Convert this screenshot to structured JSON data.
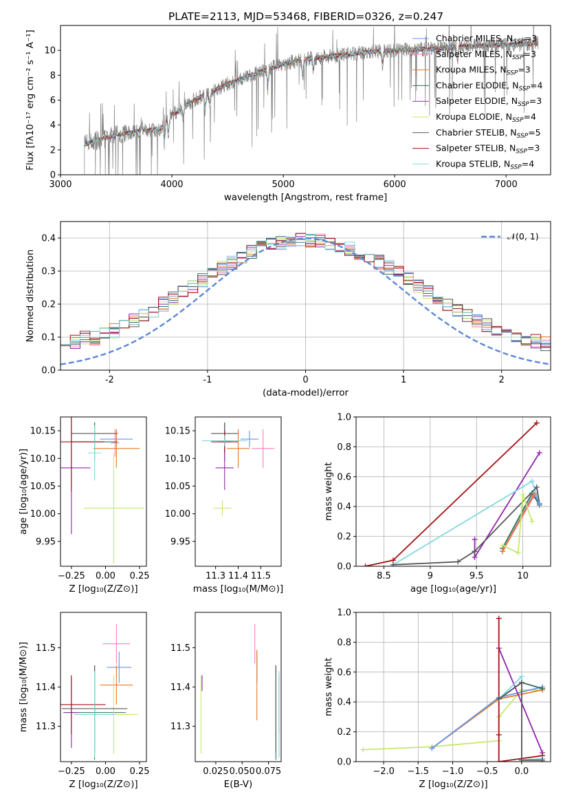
{
  "figure": {
    "title": "PLATE=2113, MJD=53468, FIBERID=0326, z=0.247"
  },
  "palette": {
    "Chabrier MILES": "#6495ed",
    "Salpeter MILES": "#ff7ab8",
    "Kroupa MILES": "#e87722",
    "Chabrier ELODIE": "#2e6b5e",
    "Salpeter ELODIE": "#8e24aa",
    "Kroupa ELODIE": "#c6e86b",
    "Chabrier STELIB": "#555555",
    "Salpeter STELIB": "#a50f15",
    "Kroupa STELIB": "#80d8e0",
    "normal": "#5b86d6",
    "observed": "#808080"
  },
  "chart_data": [
    {
      "id": "spectrum",
      "type": "line",
      "title": "PLATE=2113, MJD=53468, FIBERID=0326, z=0.247",
      "xlabel": "wavelength [Angstrom, rest frame]",
      "ylabel": "Flux [fλ10⁻¹⁷ erg cm⁻² s⁻¹ A⁻¹]",
      "xlim": [
        3000,
        7400
      ],
      "ylim": [
        0,
        12
      ],
      "xticks": [
        3000,
        4000,
        5000,
        6000,
        7000
      ],
      "yticks": [
        0,
        2,
        4,
        6,
        8,
        10
      ],
      "grid": false,
      "legend_position": "top-right",
      "continuum": {
        "x": [
          3210,
          3300,
          3500,
          3700,
          3900,
          3960,
          4000,
          4200,
          4500,
          4800,
          5000,
          5200,
          5500,
          5800,
          6000,
          6300,
          6600,
          6900,
          7200,
          7300
        ],
        "y": [
          2.4,
          2.7,
          3.2,
          3.5,
          3.7,
          4.6,
          4.8,
          6.0,
          7.3,
          8.3,
          8.9,
          9.3,
          9.6,
          9.9,
          10.0,
          10.1,
          10.3,
          10.4,
          10.5,
          10.6
        ]
      },
      "series": [
        {
          "name": "Chabrier MILES, N_SSP=3"
        },
        {
          "name": "Salpeter MILES, N_SSP=3"
        },
        {
          "name": "Kroupa MILES, N_SSP=3"
        },
        {
          "name": "Chabrier ELODIE, N_SSP=4"
        },
        {
          "name": "Salpeter ELODIE, N_SSP=3"
        },
        {
          "name": "Kroupa ELODIE, N_SSP=4"
        },
        {
          "name": "Chabrier STELIB, N_SSP=5"
        },
        {
          "name": "Salpeter STELIB, N_SSP=3"
        },
        {
          "name": "Kroupa STELIB, N_SSP=4"
        }
      ]
    },
    {
      "id": "residuals",
      "type": "line",
      "xlabel": "(data-model)/error",
      "ylabel": "Normed distribution",
      "xlim": [
        -2.5,
        2.5
      ],
      "ylim": [
        0,
        0.45
      ],
      "xticks": [
        -2,
        -1,
        0,
        1,
        2
      ],
      "yticks": [
        0.0,
        0.1,
        0.2,
        0.3,
        0.4
      ],
      "grid": true,
      "legend_position": "top-right",
      "normal_label": "𝒩(0, 1)",
      "bin_width": 0.1,
      "histogram_series": 9
    },
    {
      "id": "age_vs_Z",
      "type": "scatter",
      "xlabel": "Z [log₁₀(Z/Z⊙)]",
      "ylabel": "age  [log₁₀(age/yr)]",
      "xlim": [
        -0.33,
        0.3
      ],
      "ylim": [
        9.905,
        10.175
      ],
      "xticks": [
        -0.25,
        0.0,
        0.25
      ],
      "xticklabels": [
        "−0.25",
        "0.00",
        "0.25"
      ],
      "yticks": [
        9.95,
        10.0,
        10.05,
        10.1,
        10.15
      ],
      "grid": false,
      "points": [
        {
          "model": "Chabrier MILES",
          "x": 0.08,
          "y": 10.135,
          "xerr": 0.12,
          "yerr": 0.015
        },
        {
          "model": "Salpeter MILES",
          "x": 0.07,
          "y": 10.128,
          "xerr": 0.03,
          "yerr": 0.025
        },
        {
          "model": "Kroupa MILES",
          "x": 0.08,
          "y": 10.118,
          "xerr": 0.17,
          "yerr": 0.035
        },
        {
          "model": "Chabrier ELODIE",
          "x": -0.08,
          "y": 10.13,
          "xerr": 0.17,
          "yerr": 0.035
        },
        {
          "model": "Salpeter ELODIE",
          "x": -0.25,
          "y": 10.083,
          "xerr": 0.14,
          "yerr": 0.12
        },
        {
          "model": "Kroupa ELODIE",
          "x": 0.06,
          "y": 10.01,
          "xerr": 0.22,
          "yerr": 0.1
        },
        {
          "model": "Chabrier STELIB",
          "x": -0.08,
          "y": 10.145,
          "xerr": 0.17,
          "yerr": 0.02
        },
        {
          "model": "Salpeter STELIB",
          "x": -0.25,
          "y": 10.13,
          "xerr": 0.24,
          "yerr": 0.09
        },
        {
          "model": "Kroupa STELIB",
          "x": -0.08,
          "y": 10.11,
          "xerr": 0.05,
          "yerr": 0.05
        }
      ]
    },
    {
      "id": "age_vs_mass",
      "type": "scatter",
      "xlabel": "mass [log₁₀(M/M⊙)]",
      "xlim": [
        11.21,
        11.59
      ],
      "ylim": [
        9.905,
        10.175
      ],
      "xticks": [
        11.3,
        11.4,
        11.5
      ],
      "yticks": [
        9.95,
        10.0,
        10.05,
        10.1,
        10.15
      ],
      "grid": false,
      "points": [
        {
          "model": "Chabrier MILES",
          "x": 11.45,
          "y": 10.135,
          "xerr": 0.04,
          "yerr": 0.015
        },
        {
          "model": "Salpeter MILES",
          "x": 11.51,
          "y": 10.118,
          "xerr": 0.05,
          "yerr": 0.035
        },
        {
          "model": "Kroupa MILES",
          "x": 11.4,
          "y": 10.118,
          "xerr": 0.05,
          "yerr": 0.035
        },
        {
          "model": "Chabrier ELODIE",
          "x": 11.34,
          "y": 10.13,
          "xerr": 0.03,
          "yerr": 0.035
        },
        {
          "model": "Salpeter ELODIE",
          "x": 11.34,
          "y": 10.083,
          "xerr": 0.04,
          "yerr": 0.04
        },
        {
          "model": "Kroupa ELODIE",
          "x": 11.33,
          "y": 10.01,
          "xerr": 0.04,
          "yerr": 0.015
        },
        {
          "model": "Chabrier STELIB",
          "x": 11.34,
          "y": 10.145,
          "xerr": 0.06,
          "yerr": 0.02
        },
        {
          "model": "Salpeter STELIB",
          "x": 11.34,
          "y": 10.13,
          "xerr": 0.06,
          "yerr": 0.02
        },
        {
          "model": "Kroupa STELIB",
          "x": 11.34,
          "y": 10.132,
          "xerr": 0.1,
          "yerr": 0.01
        }
      ]
    },
    {
      "id": "weight_vs_age",
      "type": "line",
      "xlabel": "age  [log₁₀(age/yr)]",
      "ylabel": "mass weight",
      "xlim": [
        8.2,
        10.3
      ],
      "ylim": [
        0,
        1.0
      ],
      "xticks": [
        8.5,
        9.0,
        9.5,
        10.0
      ],
      "yticks": [
        0.0,
        0.2,
        0.4,
        0.6,
        0.8,
        1.0
      ],
      "grid": true,
      "series": [
        {
          "model": "Salpeter STELIB",
          "x": [
            8.3,
            8.6,
            10.15
          ],
          "y": [
            0.0,
            0.04,
            0.96
          ]
        },
        {
          "model": "Salpeter ELODIE",
          "x": [
            9.48,
            9.48,
            10.18
          ],
          "y": [
            0.18,
            0.06,
            0.76
          ]
        },
        {
          "model": "Kroupa STELIB",
          "x": [
            8.6,
            10.1,
            10.18
          ],
          "y": [
            0.01,
            0.57,
            0.42
          ]
        },
        {
          "model": "Chabrier STELIB",
          "x": [
            8.6,
            9.3,
            9.48,
            10.15,
            10.18
          ],
          "y": [
            0.01,
            0.03,
            0.1,
            0.53,
            0.42
          ]
        },
        {
          "model": "Chabrier ELODIE",
          "x": [
            9.78,
            10.1,
            10.18
          ],
          "y": [
            0.12,
            0.49,
            0.41
          ]
        },
        {
          "model": "Chabrier MILES",
          "x": [
            9.78,
            10.12,
            10.18
          ],
          "y": [
            0.1,
            0.49,
            0.42
          ]
        },
        {
          "model": "Salpeter MILES",
          "x": [
            9.78,
            10.12
          ],
          "y": [
            0.1,
            0.47
          ]
        },
        {
          "model": "Kroupa MILES",
          "x": [
            9.78,
            10.12
          ],
          "y": [
            0.1,
            0.48
          ]
        },
        {
          "model": "Kroupa ELODIE",
          "x": [
            9.78,
            9.95,
            10.0,
            10.1
          ],
          "y": [
            0.14,
            0.09,
            0.48,
            0.3
          ]
        }
      ]
    },
    {
      "id": "mass_vs_Z",
      "type": "scatter",
      "xlabel": "Z [log₁₀(Z/Z⊙)]",
      "ylabel": "mass [log₁₀(M/M⊙)]",
      "xlim": [
        -0.33,
        0.3
      ],
      "ylim": [
        11.21,
        11.59
      ],
      "xticks": [
        -0.25,
        0.0,
        0.25
      ],
      "xticklabels": [
        "−0.25",
        "0.00",
        "0.25"
      ],
      "yticks": [
        11.3,
        11.4,
        11.5
      ],
      "grid": false,
      "points": [
        {
          "model": "Chabrier MILES",
          "x": 0.1,
          "y": 11.45,
          "xerr": 0.09,
          "yerr": 0.04
        },
        {
          "model": "Salpeter MILES",
          "x": 0.08,
          "y": 11.51,
          "xerr": 0.1,
          "yerr": 0.05
        },
        {
          "model": "Kroupa MILES",
          "x": 0.08,
          "y": 11.405,
          "xerr": 0.12,
          "yerr": 0.05
        },
        {
          "model": "Chabrier ELODIE",
          "x": -0.08,
          "y": 11.335,
          "xerr": 0.23,
          "yerr": 0.12
        },
        {
          "model": "Salpeter ELODIE",
          "x": -0.25,
          "y": 11.335,
          "xerr": 0.05,
          "yerr": 0.09
        },
        {
          "model": "Kroupa ELODIE",
          "x": 0.06,
          "y": 11.33,
          "xerr": 0.18,
          "yerr": 0.1
        },
        {
          "model": "Chabrier STELIB",
          "x": -0.08,
          "y": 11.345,
          "xerr": 0.24,
          "yerr": 0.11
        },
        {
          "model": "Salpeter STELIB",
          "x": -0.25,
          "y": 11.355,
          "xerr": 0.25,
          "yerr": 0.075
        },
        {
          "model": "Kroupa STELIB",
          "x": -0.08,
          "y": 11.33,
          "xerr": 0.15,
          "yerr": 0.11
        }
      ]
    },
    {
      "id": "mass_vs_EBV",
      "type": "scatter",
      "xlabel": "E(B-V)",
      "xlim": [
        0.0055,
        0.087
      ],
      "ylim": [
        11.21,
        11.59
      ],
      "xticks": [
        0.025,
        0.05,
        0.075
      ],
      "xticklabels": [
        "0.025",
        "0.050",
        "0.075"
      ],
      "yticks": [
        11.3,
        11.4,
        11.5
      ],
      "grid": false,
      "points": [
        {
          "model": "Chabrier MILES",
          "x": 0.064,
          "y": 11.45,
          "xerr": 0.0,
          "yerr": 0.04
        },
        {
          "model": "Salpeter MILES",
          "x": 0.062,
          "y": 11.51,
          "xerr": 0.0,
          "yerr": 0.05
        },
        {
          "model": "Kroupa MILES",
          "x": 0.064,
          "y": 11.405,
          "xerr": 0.0,
          "yerr": 0.09
        },
        {
          "model": "Chabrier ELODIE",
          "x": 0.082,
          "y": 11.335,
          "xerr": 0.0,
          "yerr": 0.12
        },
        {
          "model": "Salpeter ELODIE",
          "x": 0.012,
          "y": 11.41,
          "xerr": 0.0,
          "yerr": 0.02
        },
        {
          "model": "Kroupa ELODIE",
          "x": 0.011,
          "y": 11.33,
          "xerr": 0.0,
          "yerr": 0.1
        },
        {
          "model": "Chabrier STELIB",
          "x": 0.082,
          "y": 11.345,
          "xerr": 0.0,
          "yerr": 0.11
        },
        {
          "model": "Salpeter STELIB",
          "x": 0.085,
          "y": 11.355,
          "xerr": 0.0,
          "yerr": 0.075
        },
        {
          "model": "Kroupa STELIB",
          "x": 0.085,
          "y": 11.33,
          "xerr": 0.0,
          "yerr": 0.11
        }
      ]
    },
    {
      "id": "weight_vs_Z",
      "type": "line",
      "xlabel": "Z [log₁₀(Z/Z⊙)]",
      "ylabel": "mass weight",
      "xlim": [
        -2.4,
        0.42
      ],
      "ylim": [
        0,
        1.0
      ],
      "xticks": [
        -2.0,
        -1.5,
        -1.0,
        -0.5,
        0.0
      ],
      "xticklabels": [
        "−2.0",
        "−1.5",
        "−1.0",
        "−0.5",
        "0.0"
      ],
      "yticks": [
        0.0,
        0.2,
        0.4,
        0.6,
        0.8,
        1.0
      ],
      "grid": true,
      "series": [
        {
          "model": "Kroupa ELODIE",
          "x": [
            -2.3,
            -1.3,
            -0.33,
            -0.33,
            0.0,
            0.3
          ],
          "y": [
            0.08,
            0.1,
            0.14,
            0.3,
            0.48,
            0.48
          ]
        },
        {
          "model": "Kroupa MILES",
          "x": [
            -1.3,
            -0.33,
            0.3
          ],
          "y": [
            0.09,
            0.42,
            0.48
          ]
        },
        {
          "model": "Chabrier MILES",
          "x": [
            -1.3,
            -0.33,
            0.3
          ],
          "y": [
            0.09,
            0.43,
            0.5
          ]
        },
        {
          "model": "Chabrier ELODIE",
          "x": [
            -0.33,
            0.0,
            0.3
          ],
          "y": [
            0.42,
            0.53,
            0.49
          ]
        },
        {
          "model": "Salpeter ELODIE",
          "x": [
            -0.33,
            0.3,
            0.3
          ],
          "y": [
            0.76,
            0.06,
            0.0
          ]
        },
        {
          "model": "Salpeter STELIB",
          "x": [
            -0.33,
            -0.33,
            -0.33,
            0.3
          ],
          "y": [
            0.96,
            0.18,
            0.0,
            0.04
          ]
        },
        {
          "model": "Kroupa STELIB",
          "x": [
            -0.33,
            0.0,
            0.0,
            0.3
          ],
          "y": [
            0.42,
            0.57,
            0.01,
            0.02
          ]
        },
        {
          "model": "Chabrier STELIB",
          "x": [
            -0.33,
            0.0,
            0.0,
            0.3
          ],
          "y": [
            0.42,
            0.53,
            0.01,
            0.01
          ]
        }
      ]
    }
  ]
}
